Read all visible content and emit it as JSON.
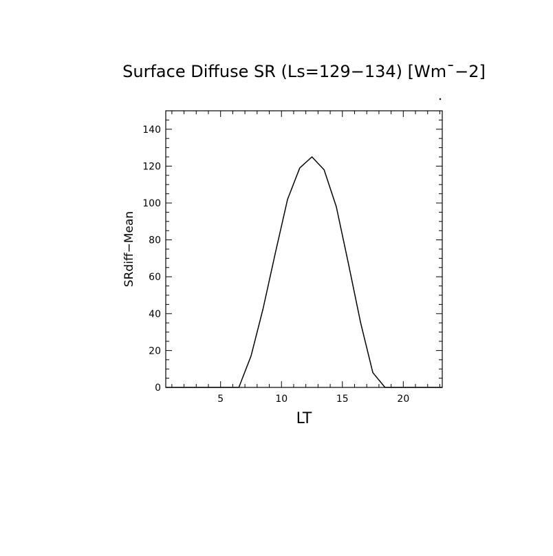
{
  "chart_data": {
    "type": "line",
    "title": "Surface Diffuse SR (Ls=129−134) [Wm¯−2]",
    "xlabel": "LT",
    "ylabel": "SRdiff−Mean",
    "xlim": [
      0.5,
      23.2
    ],
    "ylim": [
      0,
      150
    ],
    "x_ticks": [
      5,
      10,
      15,
      20
    ],
    "y_ticks": [
      0,
      20,
      40,
      60,
      80,
      100,
      120,
      140
    ],
    "x_tick_labels": [
      "5",
      "10",
      "15",
      "20"
    ],
    "y_tick_labels": [
      "0",
      "20",
      "40",
      "60",
      "80",
      "100",
      "120",
      "140"
    ],
    "grid": false,
    "legend": "none",
    "series": [
      {
        "x": [
          0.5,
          1.5,
          2.5,
          3.5,
          4.5,
          5.5,
          6.5,
          7.5,
          8.5,
          9.5,
          10.5,
          11.5,
          12.5,
          13.5,
          14.5,
          15.5,
          16.5,
          17.5,
          18.5,
          19.5,
          20.5,
          21.5,
          22.5,
          23.2
        ],
        "values": [
          0,
          0,
          0,
          0,
          0,
          0,
          0,
          17,
          43,
          73,
          102,
          119,
          125,
          118,
          98,
          67,
          35,
          8,
          0,
          0,
          0,
          0,
          0,
          0
        ],
        "color": "#000000"
      }
    ]
  }
}
